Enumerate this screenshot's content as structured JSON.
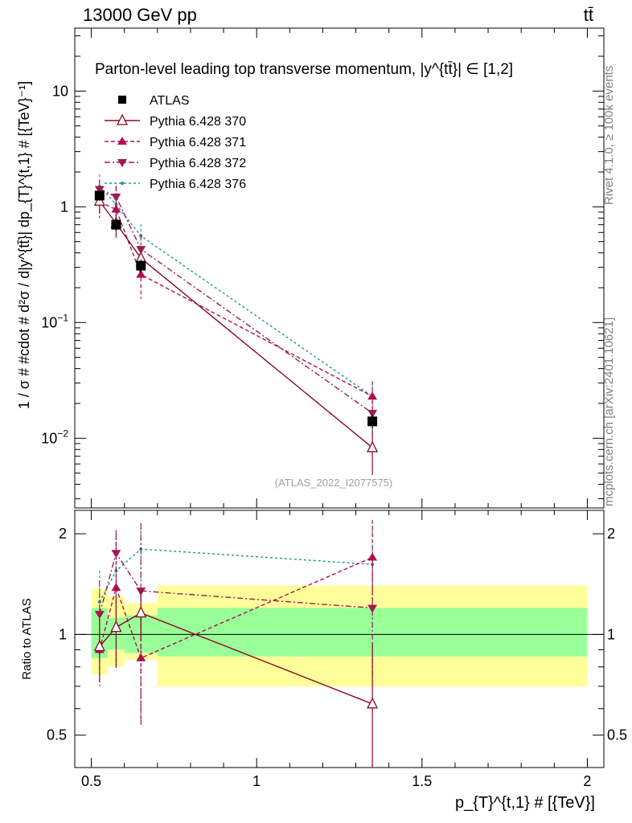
{
  "header": {
    "left_label": "13000 GeV pp",
    "right_label": "tt̄"
  },
  "side_labels": {
    "rivet": "Rivet 4.1.0, ≥ 100k events",
    "source": "mcplots.cern.ch [arXiv:2401.10621]"
  },
  "chart_data": {
    "type": "scatter",
    "title": "Parton-level leading top transverse momentum, |y^{tt̄}| ∈ [1,2]",
    "watermark": "(ATLAS_2022_I2077575)",
    "xlabel": "p_{T}^{t,1} # [{TeV}]",
    "ylabel": "1 / σ # #cdot # d²σ / d|y^{tt̄}| dp_{T}^{t,1} # [{TeV}⁻¹]",
    "ratio_ylabel": "Ratio to ATLAS",
    "xlim": [
      0.45,
      2.05
    ],
    "ylim": [
      0.0025,
      35
    ],
    "yscale": "log",
    "ratio_ylim": [
      0.4,
      2.35
    ],
    "ratio_yscale": "log",
    "x_ticks": [
      "0.5",
      "1",
      "1.5",
      "2"
    ],
    "y_ticks_main": [
      "10^{-2}",
      "10^{-1}",
      "1",
      "10"
    ],
    "y_ticks_ratio": [
      "0.5",
      "1",
      "2"
    ],
    "bins": [
      {
        "lo": 0.5,
        "hi": 0.55
      },
      {
        "lo": 0.55,
        "hi": 0.6
      },
      {
        "lo": 0.6,
        "hi": 0.7
      },
      {
        "lo": 0.7,
        "hi": 2.0
      }
    ],
    "x": [
      0.525,
      0.575,
      0.65,
      1.35
    ],
    "band_stat": [
      0.85,
      0.9,
      0.88,
      0.86
    ],
    "band_stat_hi": [
      1.2,
      1.12,
      1.14,
      1.2
    ],
    "band_tot": [
      0.76,
      0.8,
      0.84,
      0.7
    ],
    "band_tot_hi": [
      1.37,
      1.3,
      1.24,
      1.4
    ],
    "series": [
      {
        "name": "ATLAS",
        "color": "#000000",
        "marker": "square",
        "dash": "",
        "values": [
          1.25,
          0.7,
          0.31,
          0.014
        ],
        "errors": [
          0.12,
          0.08,
          0.04,
          0.002
        ],
        "ratio": [
          1,
          1,
          1,
          1
        ],
        "ratio_err": [
          0,
          0,
          0,
          0
        ]
      },
      {
        "name": "Pythia 6.428 370",
        "color": "#8b0a26",
        "marker": "open-triangle-up",
        "dash": "",
        "values": [
          1.12,
          0.72,
          0.36,
          0.0083
        ],
        "errors": [
          0.25,
          0.18,
          0.06,
          0.0035
        ],
        "ratio": [
          0.92,
          1.05,
          1.16,
          0.62
        ],
        "ratio_err": [
          0.2,
          0.25,
          0.2,
          0.32
        ]
      },
      {
        "name": "Pythia 6.428 371",
        "color": "#b0104f",
        "marker": "triangle-up",
        "dash": "5,3",
        "values": [
          1.1,
          0.95,
          0.26,
          0.023
        ],
        "errors": [
          0.3,
          0.3,
          0.1,
          0.008
        ],
        "ratio": [
          0.9,
          1.38,
          0.85,
          1.7
        ],
        "ratio_err": [
          0.2,
          0.6,
          0.32,
          0.5
        ]
      },
      {
        "name": "Pythia 6.428 372",
        "color": "#a01a52",
        "marker": "triangle-down",
        "dash": "7,3,2,3",
        "values": [
          1.42,
          1.22,
          0.43,
          0.0165
        ],
        "errors": [
          0.3,
          0.3,
          0.15,
          0.006
        ],
        "ratio": [
          1.15,
          1.75,
          1.35,
          1.2
        ],
        "ratio_err": [
          0.3,
          0.3,
          0.8,
          0.45
        ]
      },
      {
        "name": "Pythia 6.428 376",
        "color": "#1a9a8a",
        "marker": "dot",
        "dash": "3,3",
        "values": [
          1.5,
          1.05,
          0.56,
          0.023
        ],
        "errors": [
          0.4,
          0.4,
          0.15,
          0.008
        ],
        "ratio": [
          1.25,
          1.55,
          1.8,
          1.62
        ],
        "ratio_err": [
          0.3,
          0.4,
          0.35,
          0.5
        ]
      }
    ]
  }
}
